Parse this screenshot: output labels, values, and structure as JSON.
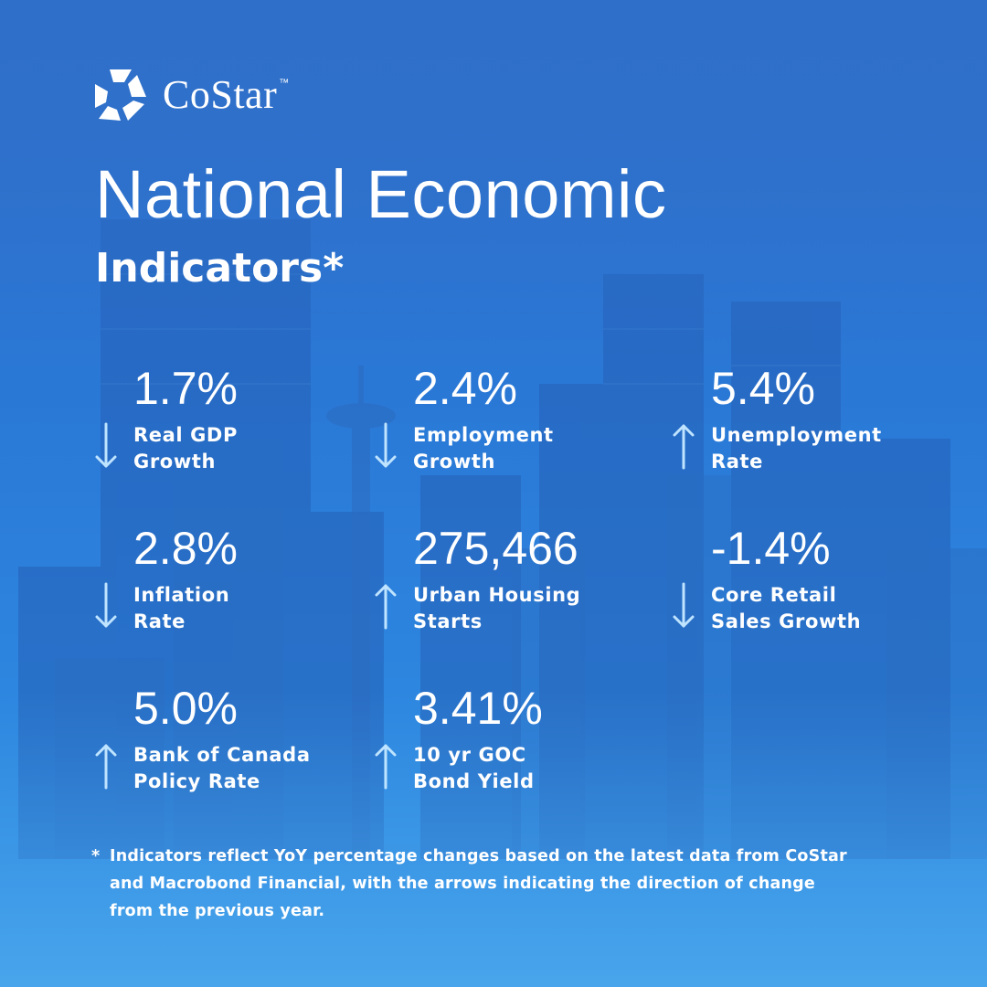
{
  "brand": {
    "name": "CoStar",
    "trademark": "™",
    "colors": {
      "background": "#2a78d6",
      "text": "#ffffff",
      "arrow": "#bfe4ff"
    }
  },
  "title": {
    "line1": "National Economic",
    "line2": "Indicators*"
  },
  "indicators": [
    {
      "value": "1.7%",
      "label_line1": "Real GDP",
      "label_line2": "Growth",
      "direction": "down"
    },
    {
      "value": "2.4%",
      "label_line1": "Employment",
      "label_line2": "Growth",
      "direction": "down"
    },
    {
      "value": "5.4%",
      "label_line1": "Unemployment",
      "label_line2": "Rate",
      "direction": "up"
    },
    {
      "value": "2.8%",
      "label_line1": "Inflation",
      "label_line2": "Rate",
      "direction": "down"
    },
    {
      "value": "275,466",
      "label_line1": "Urban Housing",
      "label_line2": "Starts",
      "direction": "up"
    },
    {
      "value": "-1.4%",
      "label_line1": "Core Retail",
      "label_line2": "Sales Growth",
      "direction": "down"
    },
    {
      "value": "5.0%",
      "label_line1": "Bank of Canada",
      "label_line2": "Policy Rate",
      "direction": "up"
    },
    {
      "value": "3.41%",
      "label_line1": "10 yr GOC",
      "label_line2": "Bond Yield",
      "direction": "up"
    }
  ],
  "footnote": {
    "marker": "*",
    "line1": "Indicators reflect YoY percentage changes based on the latest data from CoStar",
    "line2": "and Macrobond Financial, with the arrows indicating the direction of change",
    "line3": "from the previous year."
  }
}
